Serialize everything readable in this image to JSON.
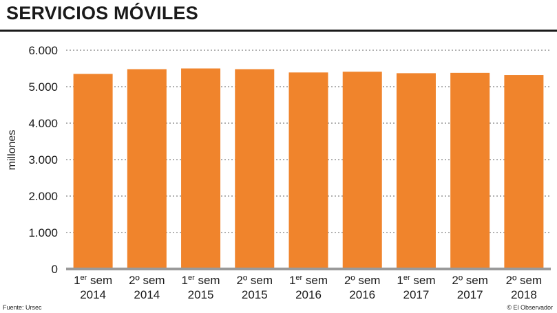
{
  "title": "SERVICIOS MÓVILES",
  "source": "Fuente: Ursec",
  "credit": "© El Observador",
  "colors": {
    "bar": "#f0842c",
    "axis": "#9a9a9a",
    "grid": "#808080",
    "text": "#1a1a1a"
  },
  "chart_data": {
    "type": "bar",
    "title": "SERVICIOS MÓVILES",
    "ylabel": "millones",
    "xlabel": "",
    "ylim": [
      0,
      6000
    ],
    "yticks": [
      0,
      1000,
      2000,
      3000,
      4000,
      5000,
      6000
    ],
    "ytick_labels": [
      "0",
      "1.000",
      "2.000",
      "3.000",
      "4.000",
      "5.000",
      "6.000"
    ],
    "grid": true,
    "categories": [
      {
        "prefix": "1",
        "sup": "er",
        "word": " sem",
        "year": "2014"
      },
      {
        "prefix": "2º",
        "sup": "",
        "word": " sem",
        "year": "2014"
      },
      {
        "prefix": "1",
        "sup": "er",
        "word": " sem",
        "year": "2015"
      },
      {
        "prefix": "2º",
        "sup": "",
        "word": " sem",
        "year": "2015"
      },
      {
        "prefix": "1",
        "sup": "er",
        "word": " sem",
        "year": "2016"
      },
      {
        "prefix": "2º",
        "sup": "",
        "word": " sem",
        "year": "2016"
      },
      {
        "prefix": "1",
        "sup": "er",
        "word": " sem",
        "year": "2017"
      },
      {
        "prefix": "2º",
        "sup": "",
        "word": " sem",
        "year": "2017"
      },
      {
        "prefix": "2º",
        "sup": "",
        "word": " sem",
        "year": "2018"
      }
    ],
    "values": [
      5350,
      5480,
      5500,
      5480,
      5390,
      5410,
      5370,
      5380,
      5320
    ]
  }
}
